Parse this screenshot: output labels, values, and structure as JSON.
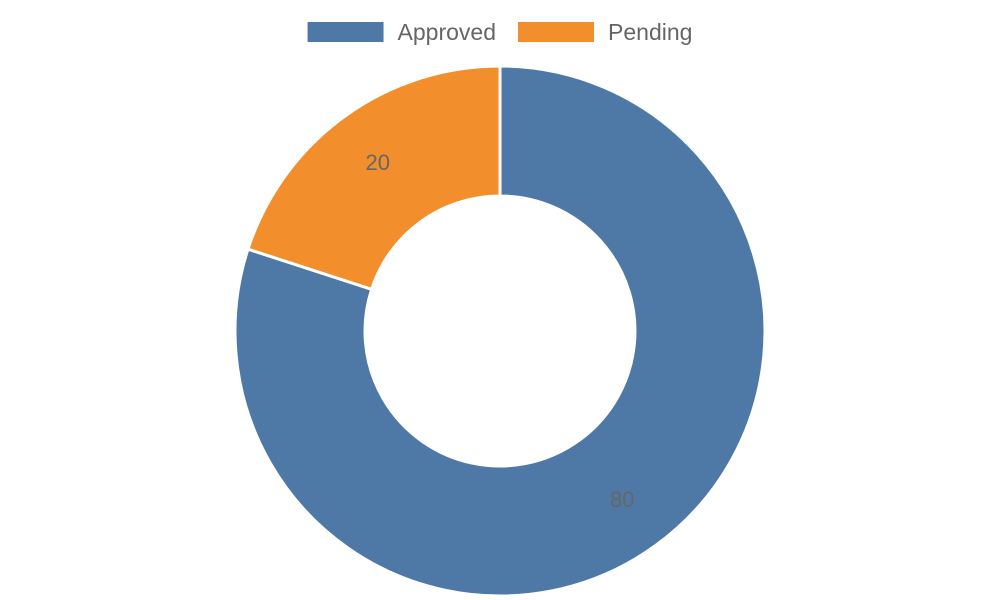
{
  "chart_data": {
    "type": "pie",
    "variant": "donut",
    "categories": [
      "Approved",
      "Pending"
    ],
    "values": [
      80,
      20
    ],
    "colors": [
      "#4e79a7",
      "#f28e2c"
    ],
    "data_labels": [
      "80",
      "20"
    ],
    "legend": {
      "position": "top",
      "entries": [
        "Approved",
        "Pending"
      ]
    },
    "title": "",
    "xlabel": "",
    "ylabel": ""
  }
}
